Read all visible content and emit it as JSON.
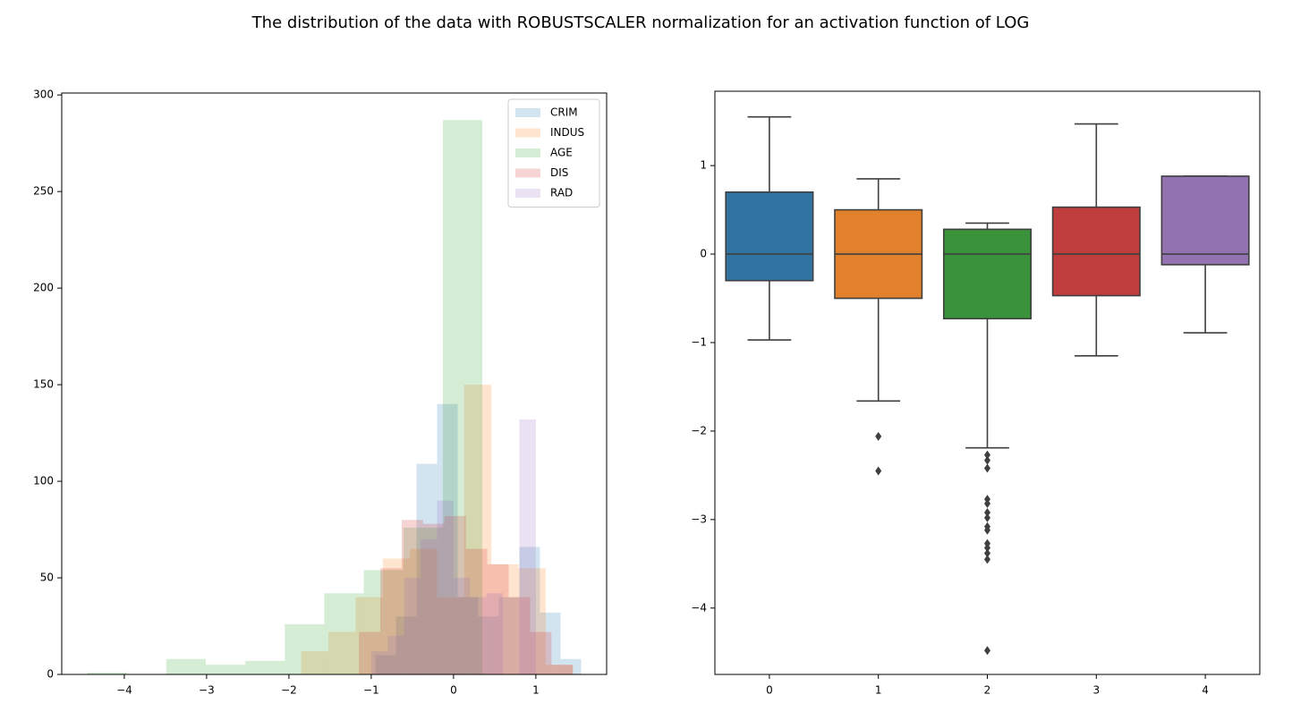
{
  "title": "The distribution of the data with ROBUSTSCALER normalization for an activation function of LOG",
  "chart_data": [
    {
      "type": "histogram",
      "legend": "upper right",
      "opacity": 0.2,
      "xlim": [
        -4.76,
        1.86
      ],
      "ylim": [
        0,
        301
      ],
      "xticks": [
        {
          "value": -4,
          "label": "−4"
        },
        {
          "value": -3,
          "label": "−3"
        },
        {
          "value": -2,
          "label": "−2"
        },
        {
          "value": -1,
          "label": "−1"
        },
        0,
        1
      ],
      "yticks": [
        0,
        50,
        100,
        150,
        200,
        250,
        300
      ],
      "series": [
        {
          "name": "CRIM",
          "color": "#1f77b4",
          "bins": [
            -0.95,
            -0.7,
            -0.45,
            -0.2,
            0.05,
            0.3,
            0.55,
            0.8,
            1.05,
            1.3,
            1.55
          ],
          "values": [
            10,
            30,
            109,
            140,
            40,
            30,
            40,
            66,
            32,
            8
          ]
        },
        {
          "name": "INDUS",
          "color": "#ff7f0e",
          "bins": [
            -1.85,
            -1.52,
            -1.19,
            -0.86,
            -0.53,
            -0.2,
            0.13,
            0.46,
            0.79,
            1.12,
            1.45
          ],
          "values": [
            12,
            22,
            40,
            60,
            65,
            40,
            150,
            57,
            55,
            5
          ]
        },
        {
          "name": "AGE",
          "color": "#2ca02c",
          "bins": [
            -4.45,
            -3.97,
            -3.49,
            -3.01,
            -2.53,
            -2.05,
            -1.57,
            -1.09,
            -0.61,
            -0.13,
            0.35
          ],
          "values": [
            1,
            0,
            8,
            5,
            7,
            26,
            42,
            54,
            76,
            287
          ]
        },
        {
          "name": "DIS",
          "color": "#d62728",
          "bins": [
            -1.15,
            -0.89,
            -0.63,
            -0.37,
            -0.11,
            0.15,
            0.41,
            0.67,
            0.93,
            1.19,
            1.45
          ],
          "values": [
            22,
            55,
            80,
            78,
            82,
            65,
            57,
            40,
            22,
            5
          ]
        },
        {
          "name": "RAD",
          "color": "#9467bd",
          "bins": [
            -1.0,
            -0.8,
            -0.6,
            -0.4,
            -0.2,
            0.0,
            0.2,
            0.4,
            0.6,
            0.8,
            1.0
          ],
          "values": [
            12,
            20,
            50,
            70,
            90,
            50,
            40,
            42,
            0,
            132
          ]
        }
      ]
    },
    {
      "type": "box",
      "ylim": [
        -4.75,
        1.84
      ],
      "yticks": [
        {
          "value": -4,
          "label": "−4"
        },
        {
          "value": -3,
          "label": "−3"
        },
        {
          "value": -2,
          "label": "−2"
        },
        {
          "value": -1,
          "label": "−1"
        },
        0,
        1
      ],
      "categories": [
        "0",
        "1",
        "2",
        "3",
        "4"
      ],
      "colors": [
        "#3274a1",
        "#e1812c",
        "#3a923a",
        "#c03d3e",
        "#9372b2"
      ],
      "whisker_low": [
        -0.97,
        -1.66,
        -2.19,
        -1.15,
        -0.89
      ],
      "q1": [
        -0.3,
        -0.5,
        -0.73,
        -0.47,
        -0.12
      ],
      "median": [
        0,
        0,
        0,
        0,
        0
      ],
      "q3": [
        0.7,
        0.5,
        0.28,
        0.53,
        0.88
      ],
      "whisker_high": [
        1.55,
        0.85,
        0.35,
        1.47,
        0.88
      ],
      "outliers": [
        [],
        [
          -2.06,
          -2.45
        ],
        [
          -2.27,
          -2.33,
          -2.42,
          -2.77,
          -2.82,
          -2.92,
          -2.98,
          -3.08,
          -3.12,
          -3.27,
          -3.32,
          -3.38,
          -3.45,
          -4.48
        ],
        [],
        []
      ]
    }
  ]
}
